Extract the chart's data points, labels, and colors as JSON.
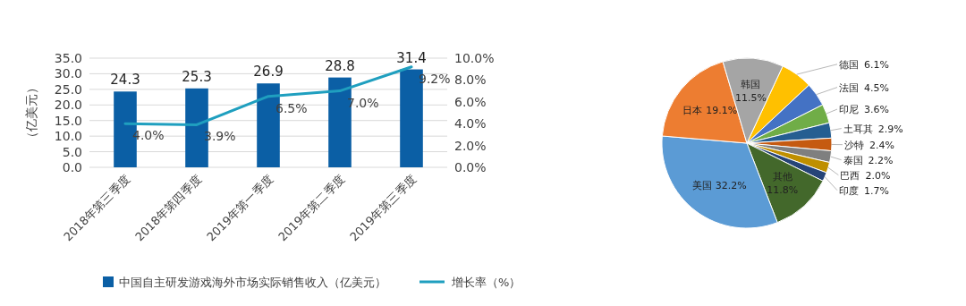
{
  "chart_data": [
    {
      "type": "bar",
      "ylabel": "（亿美元）",
      "categories": [
        "2018年第三季度",
        "2018年第四季度",
        "2019年第一季度",
        "2019年第二季度",
        "2019年第三季度"
      ],
      "series": [
        {
          "name": "中国自主研发游戏海外市场实际销售收入（亿美元）",
          "type": "bar",
          "color": "#0b5fa5",
          "values": [
            24.3,
            25.3,
            26.9,
            28.8,
            31.4
          ]
        },
        {
          "name": "增长率（%）",
          "type": "line",
          "axis": "y2",
          "color": "#1f9fbf",
          "values": [
            4.0,
            3.9,
            6.5,
            7.0,
            9.2
          ],
          "value_labels": [
            "4.0%",
            "3.9%",
            "6.5%",
            "7.0%",
            "9.2%"
          ]
        }
      ],
      "ylim": [
        0,
        35
      ],
      "yticks": [
        {
          "value": 0,
          "label": "0.0"
        },
        {
          "value": 5,
          "label": "5.0"
        },
        {
          "value": 10,
          "label": "10.0"
        },
        {
          "value": 15,
          "label": "15.0"
        },
        {
          "value": 20,
          "label": "20.0"
        },
        {
          "value": 25,
          "label": "25.0"
        },
        {
          "value": 30,
          "label": "30.0"
        },
        {
          "value": 35,
          "label": "35.0"
        }
      ],
      "y2lim": [
        0,
        10
      ],
      "y2ticks": [
        {
          "value": 0,
          "label": "0.0%"
        },
        {
          "value": 2,
          "label": "2.0%"
        },
        {
          "value": 4,
          "label": "4.0%"
        },
        {
          "value": 6,
          "label": "6.0%"
        },
        {
          "value": 8,
          "label": "8.0%"
        },
        {
          "value": 10,
          "label": "10.0%"
        }
      ],
      "grid": "y",
      "legend": "bottom",
      "data_labels": true
    },
    {
      "type": "pie",
      "categories": [
        "德国",
        "法国",
        "印尼",
        "土耳其",
        "沙特",
        "泰国",
        "巴西",
        "印度",
        "其他",
        "美国",
        "日本",
        "韩国"
      ],
      "values": [
        6.1,
        4.5,
        3.6,
        2.9,
        2.4,
        2.2,
        2.0,
        1.7,
        11.8,
        32.2,
        19.1,
        11.5
      ],
      "colors": [
        "#ffc000",
        "#4472c4",
        "#70ad47",
        "#255e91",
        "#c55a11",
        "#7f7f7f",
        "#bf8f00",
        "#264478",
        "#43682b",
        "#5b9bd5",
        "#ed7d31",
        "#a5a5a5"
      ],
      "value_labels": [
        "6.1%",
        "4.5%",
        "3.6%",
        "2.9%",
        "2.4%",
        "2.2%",
        "2.0%",
        "1.7%",
        "11.8%",
        "32.2%",
        "19.1%",
        "11.5%"
      ]
    }
  ]
}
